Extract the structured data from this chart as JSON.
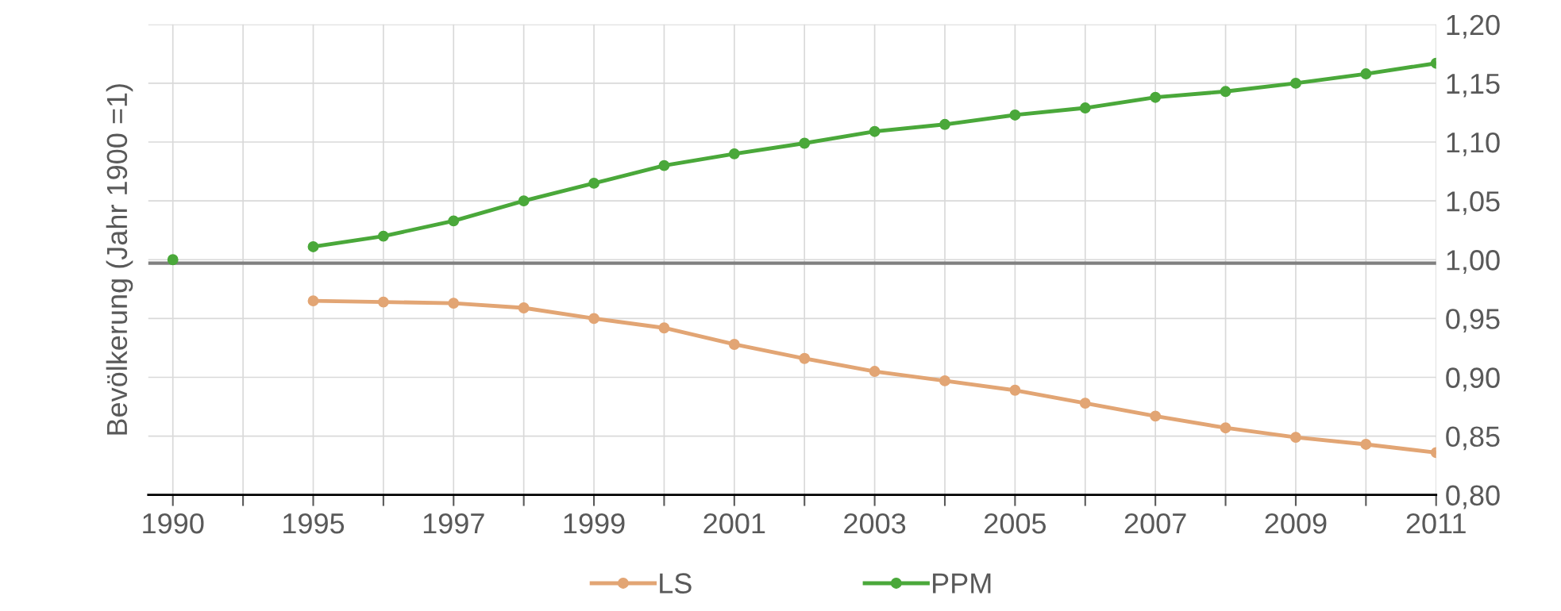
{
  "chart_data": {
    "type": "line",
    "ylabel": "Bevölkerung (Jahr 1900 =1)",
    "categories": [
      "1990",
      null,
      "1995",
      null,
      "1997",
      null,
      "1999",
      null,
      "2001",
      null,
      "2003",
      null,
      "2005",
      null,
      "2007",
      null,
      "2009",
      null,
      "2011"
    ],
    "series": [
      {
        "name": "LS",
        "color": "#e2a574",
        "values": [
          null,
          null,
          0.965,
          0.964,
          0.963,
          0.959,
          0.95,
          0.942,
          0.928,
          0.916,
          0.905,
          0.897,
          0.889,
          0.878,
          0.867,
          0.857,
          0.849,
          0.843,
          0.836
        ]
      },
      {
        "name": "PPM",
        "color": "#4aa83a",
        "values": [
          1.0,
          null,
          1.011,
          1.02,
          1.033,
          1.05,
          1.065,
          1.08,
          1.09,
          1.099,
          1.109,
          1.115,
          1.123,
          1.129,
          1.138,
          1.143,
          1.15,
          1.158,
          1.167
        ]
      }
    ],
    "ylim": [
      0.8,
      1.2
    ],
    "yticks": [
      {
        "value": 0.8,
        "label": "0,80"
      },
      {
        "value": 0.85,
        "label": "0,85"
      },
      {
        "value": 0.9,
        "label": "0,90"
      },
      {
        "value": 0.95,
        "label": "0,95"
      },
      {
        "value": 1.0,
        "label": "1,00"
      },
      {
        "value": 1.05,
        "label": "1,05"
      },
      {
        "value": 1.1,
        "label": "1,10"
      },
      {
        "value": 1.15,
        "label": "1,15"
      },
      {
        "value": 1.2,
        "label": "1,20"
      }
    ],
    "ref_lines": [
      {
        "axis": "y",
        "value": 0.997,
        "label": null,
        "color": "#808080"
      }
    ],
    "grid": true,
    "legend": "bottom",
    "marker": "circle",
    "line_style": "solid"
  }
}
